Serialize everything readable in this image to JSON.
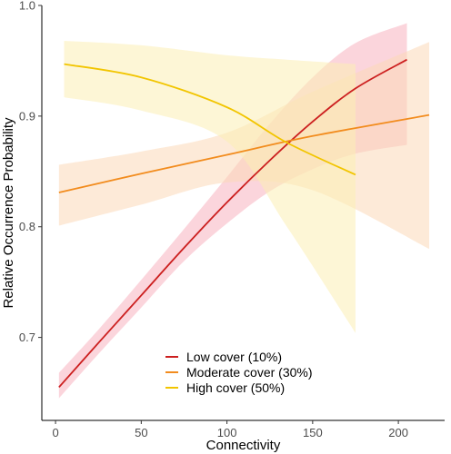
{
  "chart_data": {
    "type": "line",
    "xlabel": "Connectivity",
    "ylabel": "Relative Occurrence Probability",
    "xlim": [
      -8,
      227
    ],
    "ylim": [
      0.625,
      1.0
    ],
    "x_ticks": [
      0,
      50,
      100,
      150,
      200
    ],
    "x_tick_labels": [
      "0",
      "50",
      "100",
      "150",
      "200"
    ],
    "y_ticks": [
      0.7,
      0.8,
      0.9,
      1.0
    ],
    "y_tick_labels": [
      "0.7",
      "0.8",
      "0.9",
      "1.0"
    ],
    "grid": false,
    "legend_position": "bottom-center",
    "series": [
      {
        "name": "Low cover (10%)",
        "color": "#cc1f1f",
        "band_color": "#f7b3bf",
        "x": [
          2,
          25,
          50,
          75,
          100,
          125,
          150,
          175,
          205
        ],
        "y": [
          0.655,
          0.695,
          0.738,
          0.781,
          0.822,
          0.86,
          0.895,
          0.925,
          0.951
        ],
        "lower": [
          0.645,
          0.685,
          0.727,
          0.769,
          0.803,
          0.832,
          0.852,
          0.866,
          0.874
        ],
        "upper": [
          0.668,
          0.707,
          0.752,
          0.798,
          0.845,
          0.893,
          0.935,
          0.966,
          0.984
        ]
      },
      {
        "name": "Moderate cover (30%)",
        "color": "#f28c1e",
        "band_color": "#fbd9b8",
        "x": [
          2,
          50,
          100,
          150,
          218
        ],
        "y": [
          0.831,
          0.848,
          0.865,
          0.882,
          0.901
        ],
        "lower": [
          0.801,
          0.82,
          0.84,
          0.833,
          0.78
        ],
        "upper": [
          0.856,
          0.868,
          0.885,
          0.922,
          0.967
        ]
      },
      {
        "name": "High cover (50%)",
        "color": "#f2c500",
        "band_color": "#fbefb5",
        "x": [
          5,
          50,
          100,
          135,
          175
        ],
        "y": [
          0.947,
          0.935,
          0.908,
          0.876,
          0.847
        ],
        "lower": [
          0.917,
          0.905,
          0.877,
          0.8,
          0.704
        ],
        "upper": [
          0.968,
          0.964,
          0.955,
          0.951,
          0.947
        ]
      }
    ]
  }
}
